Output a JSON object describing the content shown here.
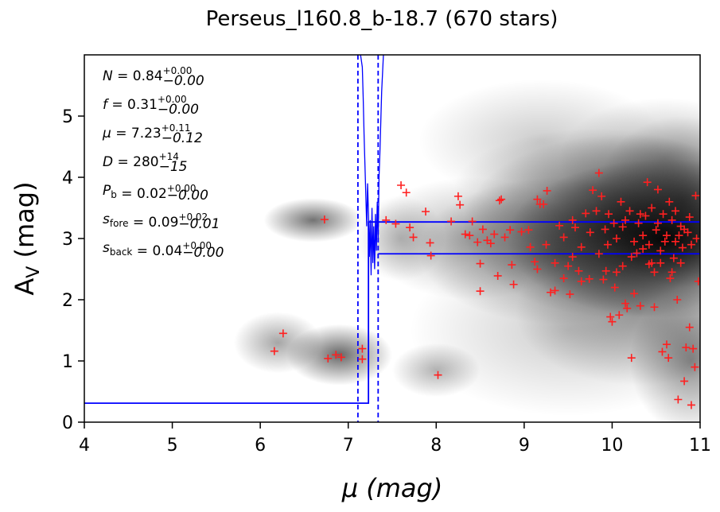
{
  "chart_data": {
    "type": "scatter",
    "title": "Perseus_l160.8_b-18.7 (670 stars)",
    "xlabel": "μ (mag)",
    "ylabel": "A_V (mag)",
    "xlim": [
      4,
      11
    ],
    "ylim": [
      0,
      6
    ],
    "xticks": [
      "4",
      "5",
      "6",
      "7",
      "8",
      "9",
      "10",
      "11"
    ],
    "yticks": [
      "0",
      "1",
      "2",
      "3",
      "4",
      "5"
    ],
    "grid": false,
    "stats": [
      {
        "var": "N",
        "val": "0.84",
        "plus": "+0.00",
        "minus": "−0.00"
      },
      {
        "var": "f",
        "val": "0.31",
        "plus": "+0.00",
        "minus": "−0.00"
      },
      {
        "var": "μ",
        "val": "7.23",
        "plus": "+0.11",
        "minus": "−0.12"
      },
      {
        "var": "D",
        "val": "280",
        "plus": "+14",
        "minus": "−15"
      },
      {
        "var": "P_b",
        "val": "0.02",
        "plus": "+0.00",
        "minus": "−0.00"
      },
      {
        "var": "s_fore",
        "val": "0.09",
        "plus": "+0.02",
        "minus": "−0.01"
      },
      {
        "var": "s_back",
        "val": "0.04",
        "plus": "+0.00",
        "minus": "−0.00"
      }
    ],
    "model": {
      "foreground_av": 0.31,
      "distance_modulus": 7.23,
      "distance_modulus_lower": 7.11,
      "distance_modulus_upper": 7.34,
      "background_av_lower": 2.75,
      "background_av_upper": 3.27
    },
    "colors": {
      "points": "#ff2020",
      "model": "#0000ff",
      "density": "#000000"
    },
    "density_blobs": [
      {
        "x": 10.6,
        "y": 3.0,
        "sx": 0.9,
        "sy": 0.65,
        "a": 0.95
      },
      {
        "x": 10.1,
        "y": 3.2,
        "sx": 0.9,
        "sy": 0.75,
        "a": 0.55
      },
      {
        "x": 10.8,
        "y": 3.6,
        "sx": 0.5,
        "sy": 0.7,
        "a": 0.45
      },
      {
        "x": 9.4,
        "y": 2.8,
        "sx": 0.8,
        "sy": 0.6,
        "a": 0.45
      },
      {
        "x": 8.4,
        "y": 3.0,
        "sx": 0.6,
        "sy": 0.5,
        "a": 0.3
      },
      {
        "x": 10.3,
        "y": 1.8,
        "sx": 0.7,
        "sy": 0.6,
        "a": 0.35
      },
      {
        "x": 10.9,
        "y": 1.0,
        "sx": 0.35,
        "sy": 0.6,
        "a": 0.45
      },
      {
        "x": 10.6,
        "y": 4.3,
        "sx": 0.6,
        "sy": 0.5,
        "a": 0.3
      },
      {
        "x": 9.2,
        "y": 4.6,
        "sx": 0.7,
        "sy": 0.5,
        "a": 0.2
      },
      {
        "x": 6.6,
        "y": 3.3,
        "sx": 0.28,
        "sy": 0.18,
        "a": 0.55
      },
      {
        "x": 6.9,
        "y": 1.1,
        "sx": 0.3,
        "sy": 0.25,
        "a": 0.6
      },
      {
        "x": 6.2,
        "y": 1.3,
        "sx": 0.25,
        "sy": 0.25,
        "a": 0.35
      },
      {
        "x": 8.0,
        "y": 0.85,
        "sx": 0.25,
        "sy": 0.22,
        "a": 0.3
      },
      {
        "x": 9.5,
        "y": 1.5,
        "sx": 0.9,
        "sy": 0.7,
        "a": 0.2
      },
      {
        "x": 7.6,
        "y": 3.0,
        "sx": 0.25,
        "sy": 0.35,
        "a": 0.25
      },
      {
        "x": 9.8,
        "y": 3.8,
        "sx": 0.8,
        "sy": 0.5,
        "a": 0.3
      }
    ],
    "likelihood_curve": [
      [
        7.14,
        6.0
      ],
      [
        7.16,
        5.8
      ],
      [
        7.17,
        5.3
      ],
      [
        7.18,
        4.7
      ],
      [
        7.19,
        4.2
      ],
      [
        7.2,
        3.7
      ],
      [
        7.21,
        3.2
      ],
      [
        7.22,
        3.9
      ],
      [
        7.23,
        3.4
      ],
      [
        7.24,
        2.7
      ],
      [
        7.25,
        3.3
      ],
      [
        7.26,
        2.4
      ],
      [
        7.27,
        3.5
      ],
      [
        7.28,
        2.6
      ],
      [
        7.29,
        3.2
      ],
      [
        7.3,
        2.5
      ],
      [
        7.31,
        3.4
      ],
      [
        7.32,
        2.8
      ],
      [
        7.33,
        3.6
      ],
      [
        7.34,
        3.0
      ],
      [
        7.35,
        4.0
      ],
      [
        7.36,
        4.4
      ],
      [
        7.37,
        4.9
      ],
      [
        7.38,
        5.4
      ],
      [
        7.39,
        5.7
      ],
      [
        7.4,
        6.0
      ]
    ],
    "points": [
      [
        6.73,
        3.31
      ],
      [
        6.26,
        1.45
      ],
      [
        6.16,
        1.16
      ],
      [
        6.77,
        1.04
      ],
      [
        6.86,
        1.1
      ],
      [
        6.92,
        1.06
      ],
      [
        7.16,
        1.2
      ],
      [
        7.16,
        1.03
      ],
      [
        8.02,
        0.77
      ],
      [
        7.6,
        3.87
      ],
      [
        7.66,
        3.75
      ],
      [
        7.43,
        3.3
      ],
      [
        7.54,
        3.24
      ],
      [
        7.7,
        3.18
      ],
      [
        7.74,
        3.02
      ],
      [
        7.88,
        3.44
      ],
      [
        7.93,
        2.93
      ],
      [
        7.94,
        2.72
      ],
      [
        8.17,
        3.28
      ],
      [
        8.25,
        3.69
      ],
      [
        8.27,
        3.55
      ],
      [
        8.33,
        3.07
      ],
      [
        8.38,
        3.05
      ],
      [
        8.41,
        3.28
      ],
      [
        8.47,
        2.94
      ],
      [
        8.5,
        2.59
      ],
      [
        8.5,
        2.14
      ],
      [
        8.53,
        3.15
      ],
      [
        8.58,
        2.97
      ],
      [
        8.62,
        2.92
      ],
      [
        8.66,
        3.07
      ],
      [
        8.7,
        2.39
      ],
      [
        8.72,
        3.62
      ],
      [
        8.74,
        3.64
      ],
      [
        8.78,
        3.02
      ],
      [
        8.84,
        3.14
      ],
      [
        8.86,
        2.57
      ],
      [
        8.88,
        2.25
      ],
      [
        8.97,
        3.11
      ],
      [
        9.05,
        3.14
      ],
      [
        9.07,
        2.86
      ],
      [
        9.12,
        2.62
      ],
      [
        9.15,
        3.64
      ],
      [
        9.18,
        3.56
      ],
      [
        9.22,
        3.56
      ],
      [
        9.26,
        3.78
      ],
      [
        9.3,
        2.12
      ],
      [
        9.35,
        2.15
      ],
      [
        9.4,
        3.21
      ],
      [
        9.45,
        3.02
      ],
      [
        9.5,
        2.55
      ],
      [
        9.52,
        2.09
      ],
      [
        9.55,
        3.3
      ],
      [
        9.58,
        3.18
      ],
      [
        9.62,
        2.47
      ],
      [
        9.65,
        2.86
      ],
      [
        9.7,
        3.41
      ],
      [
        9.74,
        2.34
      ],
      [
        9.78,
        3.79
      ],
      [
        9.82,
        3.45
      ],
      [
        9.85,
        4.07
      ],
      [
        9.88,
        3.69
      ],
      [
        9.9,
        2.33
      ],
      [
        9.93,
        2.47
      ],
      [
        9.96,
        3.4
      ],
      [
        9.98,
        1.72
      ],
      [
        10.0,
        1.64
      ],
      [
        10.03,
        2.2
      ],
      [
        10.05,
        2.45
      ],
      [
        10.08,
        1.75
      ],
      [
        10.1,
        3.6
      ],
      [
        10.12,
        3.19
      ],
      [
        10.15,
        1.94
      ],
      [
        10.17,
        1.86
      ],
      [
        10.2,
        3.45
      ],
      [
        10.22,
        1.05
      ],
      [
        10.25,
        2.1
      ],
      [
        10.28,
        2.76
      ],
      [
        10.3,
        3.25
      ],
      [
        10.32,
        1.9
      ],
      [
        10.35,
        2.83
      ],
      [
        10.38,
        3.37
      ],
      [
        10.4,
        3.92
      ],
      [
        10.42,
        2.58
      ],
      [
        10.45,
        3.5
      ],
      [
        10.48,
        1.88
      ],
      [
        10.5,
        3.14
      ],
      [
        10.52,
        3.8
      ],
      [
        10.55,
        2.6
      ],
      [
        10.57,
        1.15
      ],
      [
        10.6,
        2.95
      ],
      [
        10.62,
        1.27
      ],
      [
        10.64,
        1.05
      ],
      [
        10.66,
        2.35
      ],
      [
        10.68,
        3.3
      ],
      [
        10.7,
        2.68
      ],
      [
        10.72,
        3.45
      ],
      [
        10.74,
        2.0
      ],
      [
        10.76,
        3.05
      ],
      [
        10.78,
        3.2
      ],
      [
        10.8,
        2.85
      ],
      [
        10.82,
        0.67
      ],
      [
        10.84,
        1.22
      ],
      [
        10.86,
        3.1
      ],
      [
        10.88,
        1.55
      ],
      [
        10.9,
        2.9
      ],
      [
        10.92,
        1.2
      ],
      [
        10.94,
        0.9
      ],
      [
        10.96,
        3.0
      ],
      [
        10.75,
        0.37
      ],
      [
        10.9,
        0.28
      ],
      [
        10.95,
        3.7
      ],
      [
        10.98,
        2.3
      ],
      [
        10.65,
        3.6
      ],
      [
        10.55,
        2.8
      ],
      [
        10.45,
        2.6
      ],
      [
        10.35,
        3.05
      ],
      [
        10.25,
        2.95
      ],
      [
        10.15,
        3.3
      ],
      [
        10.05,
        3.0
      ],
      [
        9.95,
        2.9
      ],
      [
        9.85,
        2.75
      ],
      [
        9.75,
        3.1
      ],
      [
        9.65,
        2.3
      ],
      [
        9.55,
        2.7
      ],
      [
        9.45,
        2.35
      ],
      [
        9.35,
        2.6
      ],
      [
        9.25,
        2.9
      ],
      [
        9.15,
        2.5
      ],
      [
        10.62,
        3.05
      ],
      [
        10.72,
        2.95
      ],
      [
        10.82,
        3.15
      ],
      [
        10.52,
        3.25
      ],
      [
        10.42,
        2.9
      ],
      [
        10.32,
        3.4
      ],
      [
        10.22,
        2.7
      ],
      [
        10.12,
        2.55
      ],
      [
        10.02,
        3.25
      ],
      [
        9.92,
        3.15
      ],
      [
        10.88,
        3.35
      ],
      [
        10.78,
        2.6
      ],
      [
        10.68,
        2.45
      ],
      [
        10.58,
        3.4
      ],
      [
        10.48,
        2.45
      ]
    ]
  }
}
